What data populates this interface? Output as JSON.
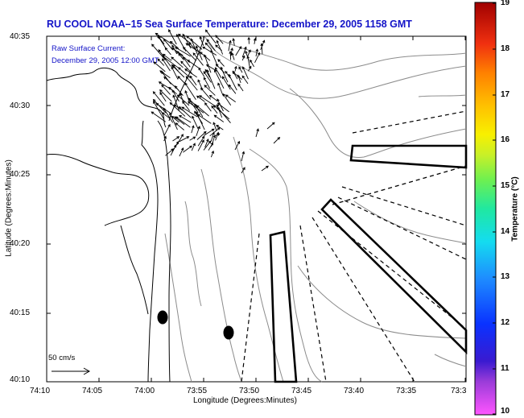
{
  "title": "RU COOL  NOAA–15  Sea Surface Temperature:  December 29, 2005 1158 GMT",
  "legend": {
    "line1": "Raw Surface Current:",
    "line2": "December 29, 2005 12:00 GMT"
  },
  "axes": {
    "xlabel": "Longitude (Degrees:Minutes)",
    "ylabel": "Latitude (Degrees:Minutes)",
    "x_ticks": [
      "74:10",
      "74:05",
      "74:00",
      "73:55",
      "73:50",
      "73:45",
      "73:40",
      "73:35",
      "73:3"
    ],
    "y_ticks": [
      "40:35",
      "40:30",
      "40:25",
      "40:20",
      "40:15",
      "40:10"
    ]
  },
  "colorbar": {
    "label": "Temperature (°C)",
    "ticks": [
      "19",
      "18",
      "17",
      "16",
      "15",
      "14",
      "13",
      "12",
      "11",
      "10"
    ]
  },
  "scale": {
    "label": "50 cm/s"
  },
  "colors": {
    "title": "#1414c8",
    "arrows": "#000000"
  }
}
